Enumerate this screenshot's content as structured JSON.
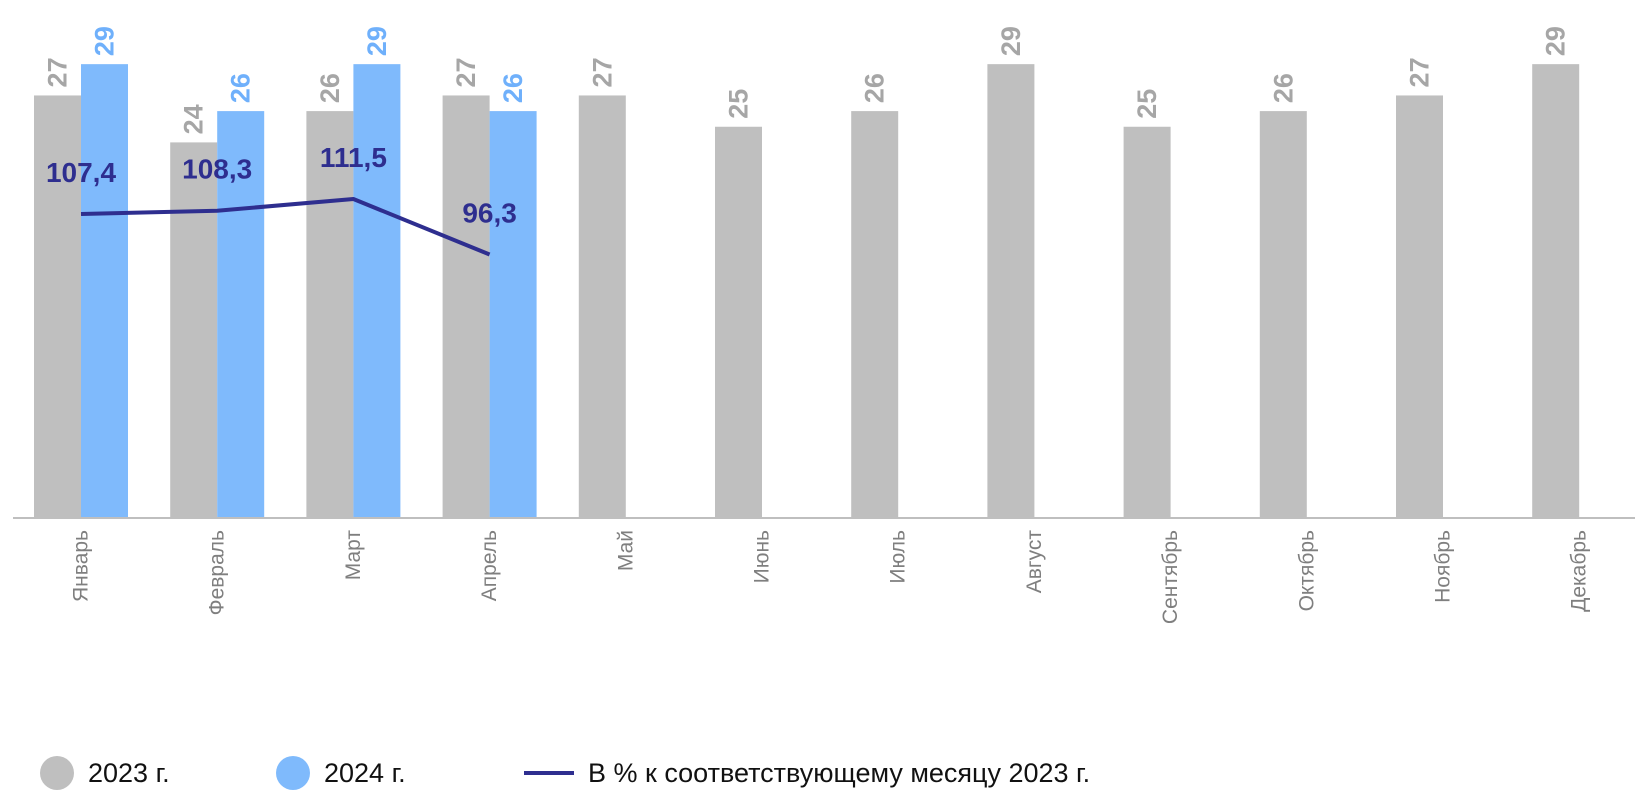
{
  "chart_data": {
    "type": "bar",
    "categories": [
      "Январь",
      "Февраль",
      "Март",
      "Апрель",
      "Май",
      "Июнь",
      "Июль",
      "Август",
      "Сентябрь",
      "Октябрь",
      "Ноябрь",
      "Декабрь"
    ],
    "series": [
      {
        "name": "2023 г.",
        "kind": "bar",
        "color": "#bfbfbf",
        "label_color": "#a6a6a6",
        "values": [
          27,
          24,
          26,
          27,
          27,
          25,
          26,
          29,
          25,
          26,
          27,
          29
        ]
      },
      {
        "name": "2024 г.",
        "kind": "bar",
        "color": "#7fbafc",
        "label_color": "#6fb0fb",
        "values": [
          29,
          26,
          29,
          26,
          null,
          null,
          null,
          null,
          null,
          null,
          null,
          null
        ]
      },
      {
        "name": "В % к соответствующему месяцу 2023 г.",
        "kind": "line",
        "color": "#2e2e8f",
        "label_color": "#2e2e8f",
        "values": [
          107.4,
          108.3,
          111.5,
          96.3,
          null,
          null,
          null,
          null,
          null,
          null,
          null,
          null
        ],
        "labels": [
          "107,4",
          "108,3",
          "111,5",
          "96,3"
        ]
      }
    ],
    "ylim": [
      0,
      32
    ],
    "line_ylim": [
      0,
      140
    ],
    "grid": false,
    "legend_position": "bottom-left",
    "title": "",
    "xlabel": "",
    "ylabel": ""
  },
  "legend": {
    "items": [
      {
        "label": "2023 г.",
        "color": "#bfbfbf",
        "shape": "circle"
      },
      {
        "label": "2024 г.",
        "color": "#7fbafc",
        "shape": "circle"
      },
      {
        "label": "В % к соответствующему месяцу 2023 г.",
        "color": "#2e2e8f",
        "shape": "line"
      }
    ]
  }
}
